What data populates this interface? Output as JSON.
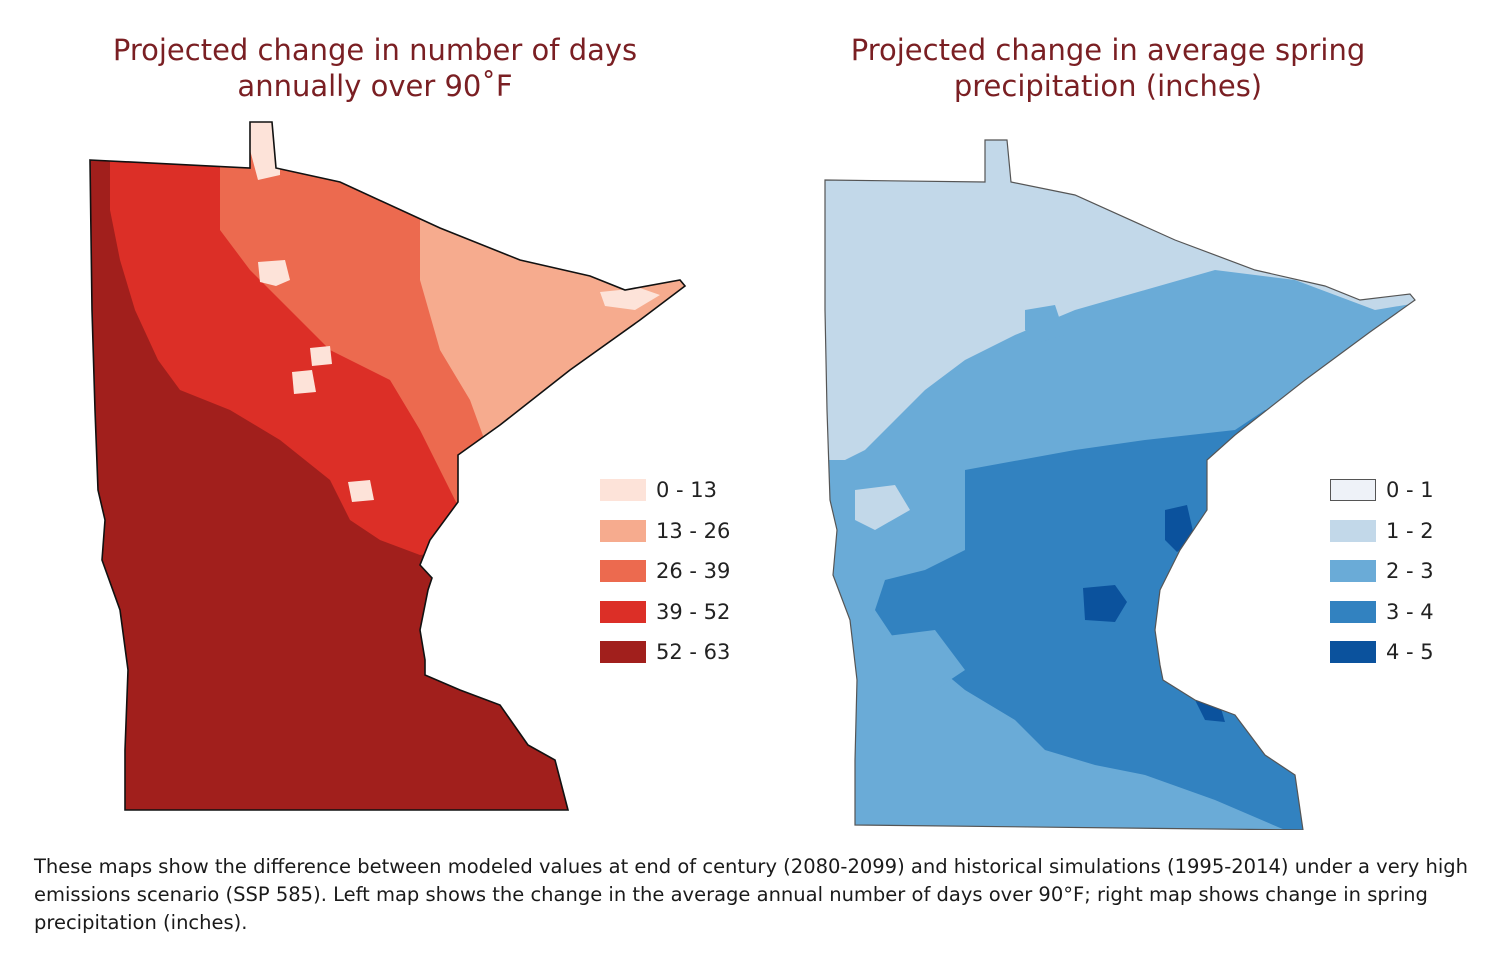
{
  "left_map": {
    "title_line1": "Projected change in number of days",
    "title_line2": "annually over 90˚F",
    "legend": [
      {
        "label": "0 - 13",
        "color": "#fde3d9"
      },
      {
        "label": "13 - 26",
        "color": "#f6ab8e"
      },
      {
        "label": "26 - 39",
        "color": "#ec6a4f"
      },
      {
        "label": "39 - 52",
        "color": "#dc2f27"
      },
      {
        "label": "52 - 63",
        "color": "#a11f1c"
      }
    ]
  },
  "right_map": {
    "title_line1": "Projected change in average spring",
    "title_line2": "precipitation (inches)",
    "legend": [
      {
        "label": "0 - 1",
        "color": "#eef2f8"
      },
      {
        "label": "1 - 2",
        "color": "#c2d8e9"
      },
      {
        "label": "2 - 3",
        "color": "#6aabd7"
      },
      {
        "label": "3 - 4",
        "color": "#3282c0"
      },
      {
        "label": "4 - 5",
        "color": "#0b529d"
      }
    ]
  },
  "caption": "These maps show the difference between modeled values at end of century (2080-2099) and historical simulations (1995-2014) under a very high emissions scenario (SSP 585). Left map shows the change in the average annual number of days over 90°F; right map shows change in spring precipitation (inches)."
}
